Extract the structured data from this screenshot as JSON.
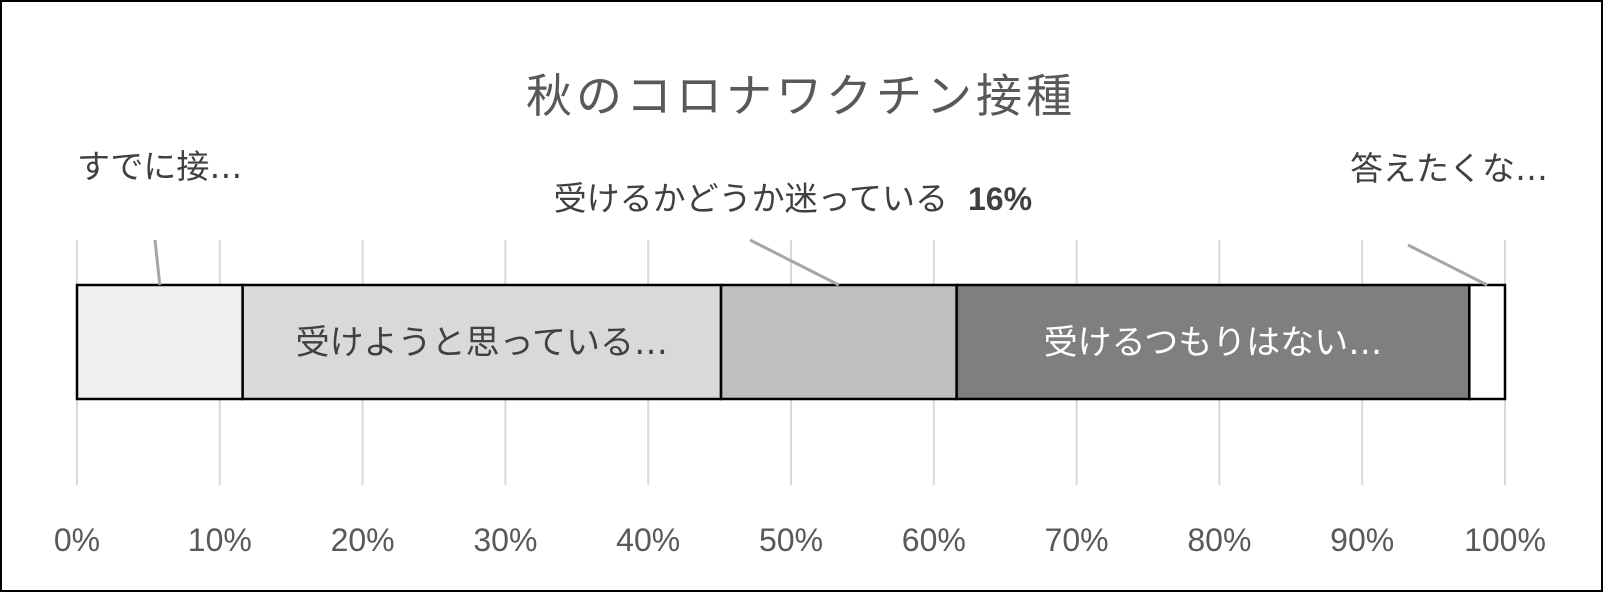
{
  "chart_data": {
    "type": "bar",
    "orientation": "horizontal-stacked-100",
    "title": "秋のコロナワクチン接種",
    "x_ticks": [
      "0%",
      "10%",
      "20%",
      "30%",
      "40%",
      "50%",
      "60%",
      "70%",
      "80%",
      "90%",
      "100%"
    ],
    "xlim": [
      0,
      100
    ],
    "grid": true,
    "series": [
      {
        "label": "すでに接…",
        "value": 11.6,
        "color": "#f0f0f0",
        "label_color": "#404040"
      },
      {
        "label": "受けようと思っている…",
        "value": 33.5,
        "color": "#d9d9d9",
        "label_color": "#404040"
      },
      {
        "label": "受けるかどうか迷っている",
        "pct_label": "16%",
        "value": 16.5,
        "color": "#bfbfbf",
        "label_color": "#404040"
      },
      {
        "label": "受けるつもりはない…",
        "value": 35.9,
        "color": "#7f7f7f",
        "label_color": "#ffffff"
      },
      {
        "label": "答えたくな…",
        "value": 2.5,
        "color": "#ffffff",
        "label_color": "#404040"
      }
    ]
  }
}
